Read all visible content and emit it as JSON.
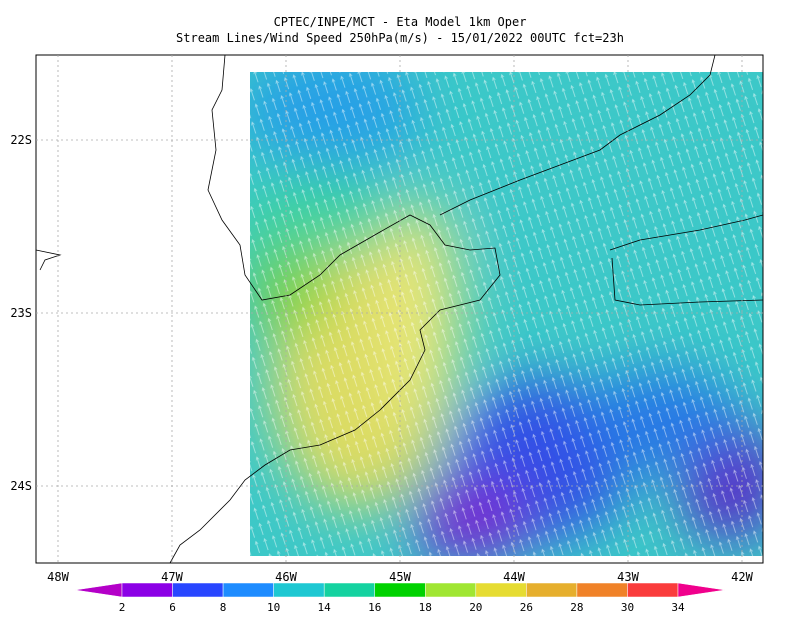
{
  "title": "CPTEC/INPE/MCT -  Eta Model 1km Oper",
  "subtitle": "Stream Lines/Wind Speed 250hPa(m/s) - 15/01/2022 00UTC fct=23h",
  "map": {
    "lat_labels": [
      "22S",
      "23S",
      "24S"
    ],
    "lon_labels": [
      "48W",
      "47W",
      "46W",
      "45W",
      "44W",
      "43W",
      "42W"
    ]
  },
  "colorbar": {
    "labels": [
      2,
      6,
      8,
      10,
      14,
      16,
      18,
      20,
      26,
      28,
      30,
      34
    ],
    "colors": [
      "#b400c8",
      "#8c00e6",
      "#2846ff",
      "#1e8cff",
      "#1ec8d2",
      "#14d2a0",
      "#00d200",
      "#a0e632",
      "#e6dc32",
      "#e6af2d",
      "#f08228",
      "#fa3c3c",
      "#f0008c"
    ]
  }
}
